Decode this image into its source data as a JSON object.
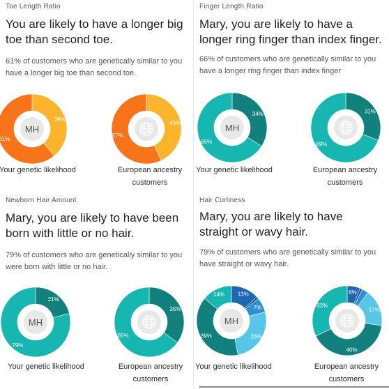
{
  "panels": [
    {
      "category": "Toe Length Ratio",
      "headline": "You are likely to have a longer big toe than second toe.",
      "description": "61% of customers who are genetically similar to you have a longer big toe than second toe.",
      "charts": [
        {
          "caption": "Your genetic likelihood",
          "center": "MH",
          "slices": [
            {
              "value": 39,
              "label": "39%",
              "color": "#fbb42b"
            },
            {
              "value": 61,
              "label": "61%",
              "color": "#f7741a"
            }
          ]
        },
        {
          "caption": "European ancestry customers",
          "center_icon": "globe-icon",
          "slices": [
            {
              "value": 43,
              "label": "43%",
              "color": "#fbb42b"
            },
            {
              "value": 57,
              "label": "57%",
              "color": "#f7741a"
            }
          ]
        }
      ]
    },
    {
      "category": "Finger Length Ratio",
      "headline": "Mary, you are likely to have a longer ring finger than index finger.",
      "description": "66% of customers who are genetically similar to you have a longer ring finger than index finger",
      "charts": [
        {
          "caption": "Your genetic likelihood",
          "center": "MH",
          "slices": [
            {
              "value": 34,
              "label": "34%",
              "color": "#12807d"
            },
            {
              "value": 66,
              "label": "66%",
              "color": "#17b6b0"
            }
          ]
        },
        {
          "caption": "European ancestry customers",
          "center_icon": "globe-icon",
          "slices": [
            {
              "value": 31,
              "label": "31%",
              "color": "#12807d"
            },
            {
              "value": 69,
              "label": "69%",
              "color": "#17b6b0"
            }
          ]
        }
      ]
    },
    {
      "category": "Newborn Hair Amount",
      "headline": "Mary, you are likely to have been born with little or no hair.",
      "description": "79% of customers who are genetically similar to you were born with little or no hair.",
      "charts": [
        {
          "caption": "Your genetic likelihood",
          "center": "MH",
          "slices": [
            {
              "value": 21,
              "label": "21%",
              "color": "#12807d"
            },
            {
              "value": 79,
              "label": "79%",
              "color": "#17b6b0"
            }
          ]
        },
        {
          "caption": "European ancestry customers",
          "center_icon": "globe-icon",
          "slices": [
            {
              "value": 35,
              "label": "35%",
              "color": "#12807d"
            },
            {
              "value": 65,
              "label": "65%",
              "color": "#17b6b0"
            }
          ]
        }
      ]
    },
    {
      "category": "Hair Curliness",
      "headline": "Mary, you are likely to have straight or wavy hair.",
      "description": "79% of customers who are genetically similar to you have straight or wavy hair.",
      "charts": [
        {
          "caption": "Your genetic likelihood",
          "center": "MH",
          "slices": [
            {
              "value": 13,
              "label": "13%",
              "color": "#1f67b0"
            },
            {
              "value": 1,
              "label": "",
              "color": "#0d3f73"
            },
            {
              "value": 7,
              "label": "7%",
              "color": "#2f8fd6"
            },
            {
              "value": 26,
              "label": "26%",
              "color": "#56c5e6"
            },
            {
              "value": 39,
              "label": "39%",
              "color": "#12807d"
            },
            {
              "value": 14,
              "label": "14%",
              "color": "#17b6b0"
            }
          ]
        },
        {
          "caption": "European ancestry customers",
          "center_icon": "globe-icon",
          "slices": [
            {
              "value": 6,
              "label": "6%",
              "color": "#1f67b0"
            },
            {
              "value": 1,
              "label": "",
              "color": "#0d3f73"
            },
            {
              "value": 3,
              "label": "",
              "color": "#2f8fd6"
            },
            {
              "value": 17,
              "label": "17%",
              "color": "#56c5e6"
            },
            {
              "value": 40,
              "label": "40%",
              "color": "#12807d"
            },
            {
              "value": 32,
              "label": "32%",
              "color": "#17b6b0"
            }
          ]
        }
      ]
    }
  ]
}
